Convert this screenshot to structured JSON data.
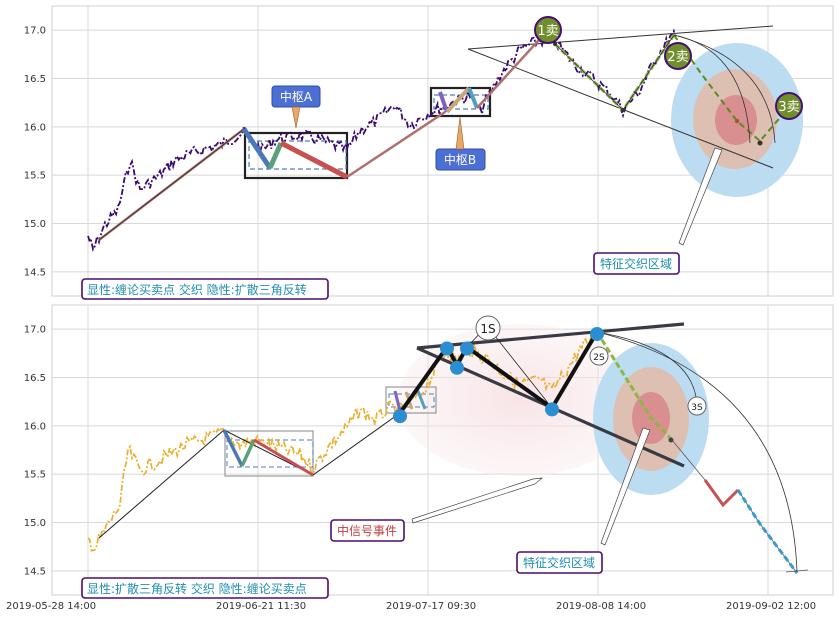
{
  "chart_data": [
    {
      "type": "line",
      "panel": "top",
      "ylim": [
        14.25,
        17.25
      ],
      "yticks": [
        "17.0",
        "16.5",
        "16.0",
        "15.5",
        "15.0",
        "14.5"
      ],
      "ytick_values": [
        17.0,
        16.5,
        16.0,
        15.5,
        15.0,
        14.5
      ],
      "grid": true,
      "trend_path": [
        {
          "x": "2019-05-29",
          "y": 14.82
        },
        {
          "x": "2019-06-24",
          "y": 15.95
        },
        {
          "x": "2019-07-01",
          "y": 15.48
        },
        {
          "x": "2019-07-22",
          "y": 16.38
        },
        {
          "x": "2019-08-08",
          "y": 16.92
        },
        {
          "x": "2019-08-13",
          "y": 16.18
        },
        {
          "x": "2019-08-19",
          "y": 16.93
        }
      ],
      "zones": [
        {
          "label": "中枢A",
          "y_low": 15.48,
          "y_high": 15.92
        },
        {
          "label": "中枢B",
          "y_low": 16.1,
          "y_high": 16.38
        }
      ],
      "sell_points": [
        "1卖",
        "2卖",
        "3卖"
      ],
      "annotations": [
        "中枢A",
        "中枢B",
        "特征交织区域"
      ],
      "legend_text": "显性:缠论买卖点 交织 隐性:扩散三角反转"
    },
    {
      "type": "line",
      "panel": "bottom",
      "ylim": [
        14.25,
        17.25
      ],
      "yticks": [
        "17.0",
        "16.5",
        "16.0",
        "15.5",
        "15.0",
        "14.5"
      ],
      "ytick_values": [
        17.0,
        16.5,
        16.0,
        15.5,
        15.0,
        14.5
      ],
      "grid": true,
      "xticks": [
        "2019-05-28 14:00",
        "2019-06-21 11:30",
        "2019-07-17 09:30",
        "2019-08-08 14:00",
        "2019-09-02 12:00"
      ],
      "pattern_points": [
        {
          "x": "2019-07-17",
          "y": 16.1
        },
        {
          "x": "2019-07-22",
          "y": 16.8
        },
        {
          "x": "2019-07-23",
          "y": 16.6
        },
        {
          "x": "2019-07-25",
          "y": 16.8
        },
        {
          "x": "2019-08-07",
          "y": 16.17
        },
        {
          "x": "2019-08-14",
          "y": 16.95
        }
      ],
      "buy_sell_markers": [
        "1S",
        "2S",
        "3S"
      ],
      "annotations": [
        "中信号事件",
        "特征交织区域"
      ],
      "legend_text": "显性:扩散三角反转 交织 隐性:缠论买卖点"
    }
  ]
}
